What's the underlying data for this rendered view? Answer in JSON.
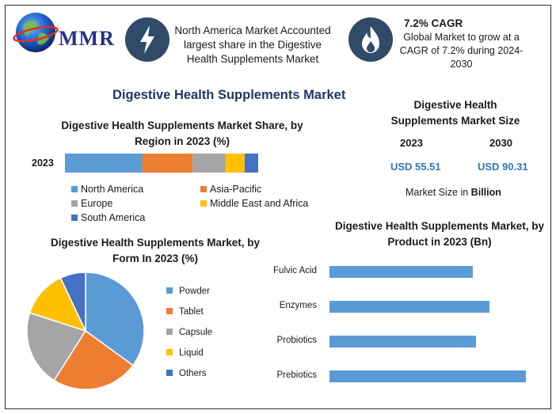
{
  "header": {
    "logo_text": "MMR",
    "highlight_text": "North America Market Accounted largest share in the Digestive Health Supplements Market",
    "cagr_title": "7.2% CAGR",
    "cagr_text": "Global Market to grow at a CAGR of 7.2% during 2024-2030"
  },
  "main_title": "Digestive Health Supplements Market",
  "market_size": {
    "title": "Digestive Health Supplements Market Size",
    "years": [
      "2023",
      "2030"
    ],
    "values": [
      "USD 55.51",
      "USD 90.31"
    ],
    "unit_prefix": "Market Size in ",
    "unit_bold": "Billion"
  },
  "chart_data": [
    {
      "type": "bar",
      "orientation": "horizontal-stacked",
      "title": "Digestive Health Supplements Market Share, by Region in 2023 (%)",
      "categories": [
        "2023"
      ],
      "series": [
        {
          "name": "North America",
          "values": [
            40
          ],
          "color": "#5b9bd5"
        },
        {
          "name": "Asia-Pacific",
          "values": [
            26
          ],
          "color": "#ed7d31"
        },
        {
          "name": "Europe",
          "values": [
            17
          ],
          "color": "#a5a5a5"
        },
        {
          "name": "Middle East and Africa",
          "values": [
            10
          ],
          "color": "#ffc000"
        },
        {
          "name": "South America",
          "values": [
            7
          ],
          "color": "#4472c4"
        }
      ],
      "legend_position": "bottom"
    },
    {
      "type": "pie",
      "title": "Digestive Health Supplements Market, by Form In 2023 (%)",
      "labels": [
        "Powder",
        "Tablet",
        "Capsule",
        "Liquid",
        "Others"
      ],
      "values": [
        35,
        24,
        21,
        13,
        7
      ],
      "colors": [
        "#5b9bd5",
        "#ed7d31",
        "#a5a5a5",
        "#ffc000",
        "#4472c4"
      ],
      "legend_position": "right"
    },
    {
      "type": "bar",
      "orientation": "horizontal",
      "title": "Digestive Health Supplements Market, by Product in 2023 (Bn)",
      "categories": [
        "Fulvic Acid",
        "Enzymes",
        "Probiotics",
        "Prebiotics"
      ],
      "values": [
        12.5,
        14.0,
        12.8,
        17.2
      ],
      "xlim": [
        0,
        18
      ],
      "color": "#5b9bd5"
    }
  ]
}
